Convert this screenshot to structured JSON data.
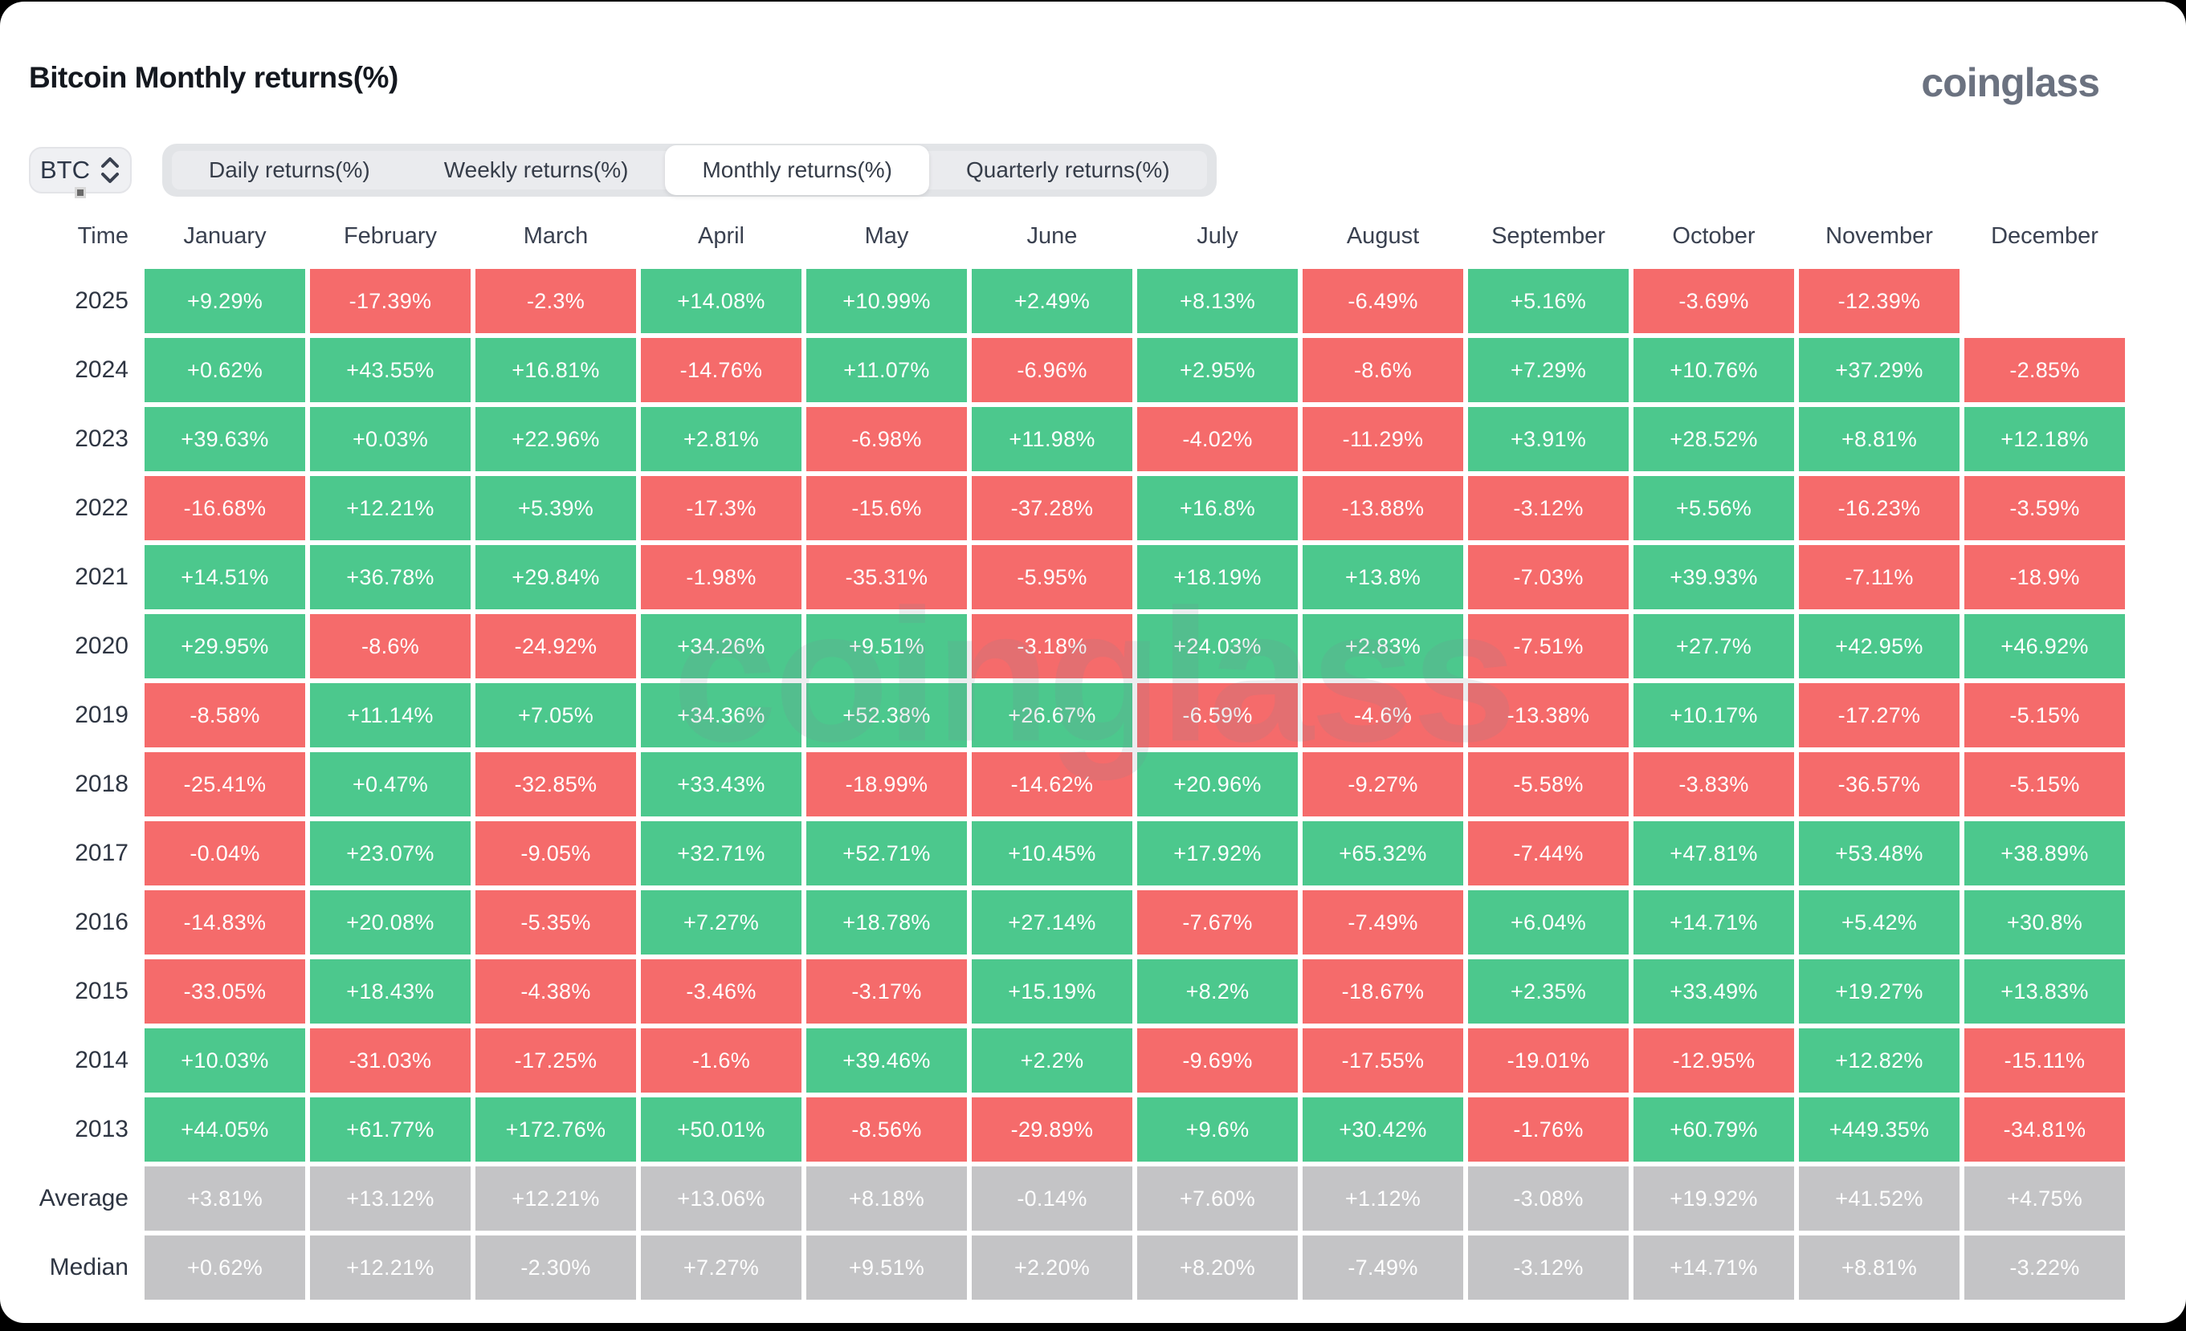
{
  "header": {
    "title": "Bitcoin Monthly returns(%)",
    "logo": "coinglass"
  },
  "controls": {
    "coin_selector": {
      "value": "BTC",
      "icon": "updown-chevron-icon"
    },
    "tabs": [
      {
        "label": "Daily returns(%)",
        "active": false
      },
      {
        "label": "Weekly returns(%)",
        "active": false
      },
      {
        "label": "Monthly returns(%)",
        "active": true
      },
      {
        "label": "Quarterly returns(%)",
        "active": false
      }
    ]
  },
  "colors": {
    "positive": "#4cc88d",
    "negative": "#f56b6b",
    "neutral": "#c4c4c6"
  },
  "watermark": "coinglass",
  "table": {
    "time_header": "Time",
    "columns": [
      "January",
      "February",
      "March",
      "April",
      "May",
      "June",
      "July",
      "August",
      "September",
      "October",
      "November",
      "December"
    ],
    "rows": [
      {
        "label": "2025",
        "kind": "year",
        "values": [
          "+9.29%",
          "-17.39%",
          "-2.3%",
          "+14.08%",
          "+10.99%",
          "+2.49%",
          "+8.13%",
          "-6.49%",
          "+5.16%",
          "-3.69%",
          "-12.39%",
          ""
        ]
      },
      {
        "label": "2024",
        "kind": "year",
        "values": [
          "+0.62%",
          "+43.55%",
          "+16.81%",
          "-14.76%",
          "+11.07%",
          "-6.96%",
          "+2.95%",
          "-8.6%",
          "+7.29%",
          "+10.76%",
          "+37.29%",
          "-2.85%"
        ]
      },
      {
        "label": "2023",
        "kind": "year",
        "values": [
          "+39.63%",
          "+0.03%",
          "+22.96%",
          "+2.81%",
          "-6.98%",
          "+11.98%",
          "-4.02%",
          "-11.29%",
          "+3.91%",
          "+28.52%",
          "+8.81%",
          "+12.18%"
        ]
      },
      {
        "label": "2022",
        "kind": "year",
        "values": [
          "-16.68%",
          "+12.21%",
          "+5.39%",
          "-17.3%",
          "-15.6%",
          "-37.28%",
          "+16.8%",
          "-13.88%",
          "-3.12%",
          "+5.56%",
          "-16.23%",
          "-3.59%"
        ]
      },
      {
        "label": "2021",
        "kind": "year",
        "values": [
          "+14.51%",
          "+36.78%",
          "+29.84%",
          "-1.98%",
          "-35.31%",
          "-5.95%",
          "+18.19%",
          "+13.8%",
          "-7.03%",
          "+39.93%",
          "-7.11%",
          "-18.9%"
        ]
      },
      {
        "label": "2020",
        "kind": "year",
        "values": [
          "+29.95%",
          "-8.6%",
          "-24.92%",
          "+34.26%",
          "+9.51%",
          "-3.18%",
          "+24.03%",
          "+2.83%",
          "-7.51%",
          "+27.7%",
          "+42.95%",
          "+46.92%"
        ]
      },
      {
        "label": "2019",
        "kind": "year",
        "values": [
          "-8.58%",
          "+11.14%",
          "+7.05%",
          "+34.36%",
          "+52.38%",
          "+26.67%",
          "-6.59%",
          "-4.6%",
          "-13.38%",
          "+10.17%",
          "-17.27%",
          "-5.15%"
        ]
      },
      {
        "label": "2018",
        "kind": "year",
        "values": [
          "-25.41%",
          "+0.47%",
          "-32.85%",
          "+33.43%",
          "-18.99%",
          "-14.62%",
          "+20.96%",
          "-9.27%",
          "-5.58%",
          "-3.83%",
          "-36.57%",
          "-5.15%"
        ]
      },
      {
        "label": "2017",
        "kind": "year",
        "values": [
          "-0.04%",
          "+23.07%",
          "-9.05%",
          "+32.71%",
          "+52.71%",
          "+10.45%",
          "+17.92%",
          "+65.32%",
          "-7.44%",
          "+47.81%",
          "+53.48%",
          "+38.89%"
        ]
      },
      {
        "label": "2016",
        "kind": "year",
        "values": [
          "-14.83%",
          "+20.08%",
          "-5.35%",
          "+7.27%",
          "+18.78%",
          "+27.14%",
          "-7.67%",
          "-7.49%",
          "+6.04%",
          "+14.71%",
          "+5.42%",
          "+30.8%"
        ]
      },
      {
        "label": "2015",
        "kind": "year",
        "values": [
          "-33.05%",
          "+18.43%",
          "-4.38%",
          "-3.46%",
          "-3.17%",
          "+15.19%",
          "+8.2%",
          "-18.67%",
          "+2.35%",
          "+33.49%",
          "+19.27%",
          "+13.83%"
        ]
      },
      {
        "label": "2014",
        "kind": "year",
        "values": [
          "+10.03%",
          "-31.03%",
          "-17.25%",
          "-1.6%",
          "+39.46%",
          "+2.2%",
          "-9.69%",
          "-17.55%",
          "-19.01%",
          "-12.95%",
          "+12.82%",
          "-15.11%"
        ]
      },
      {
        "label": "2013",
        "kind": "year",
        "values": [
          "+44.05%",
          "+61.77%",
          "+172.76%",
          "+50.01%",
          "-8.56%",
          "-29.89%",
          "+9.6%",
          "+30.42%",
          "-1.76%",
          "+60.79%",
          "+449.35%",
          "-34.81%"
        ]
      },
      {
        "label": "Average",
        "kind": "stat",
        "values": [
          "+3.81%",
          "+13.12%",
          "+12.21%",
          "+13.06%",
          "+8.18%",
          "-0.14%",
          "+7.60%",
          "+1.12%",
          "-3.08%",
          "+19.92%",
          "+41.52%",
          "+4.75%"
        ]
      },
      {
        "label": "Median",
        "kind": "stat",
        "values": [
          "+0.62%",
          "+12.21%",
          "-2.30%",
          "+7.27%",
          "+9.51%",
          "+2.20%",
          "+8.20%",
          "-7.49%",
          "-3.12%",
          "+14.71%",
          "+8.81%",
          "-3.22%"
        ]
      }
    ]
  }
}
